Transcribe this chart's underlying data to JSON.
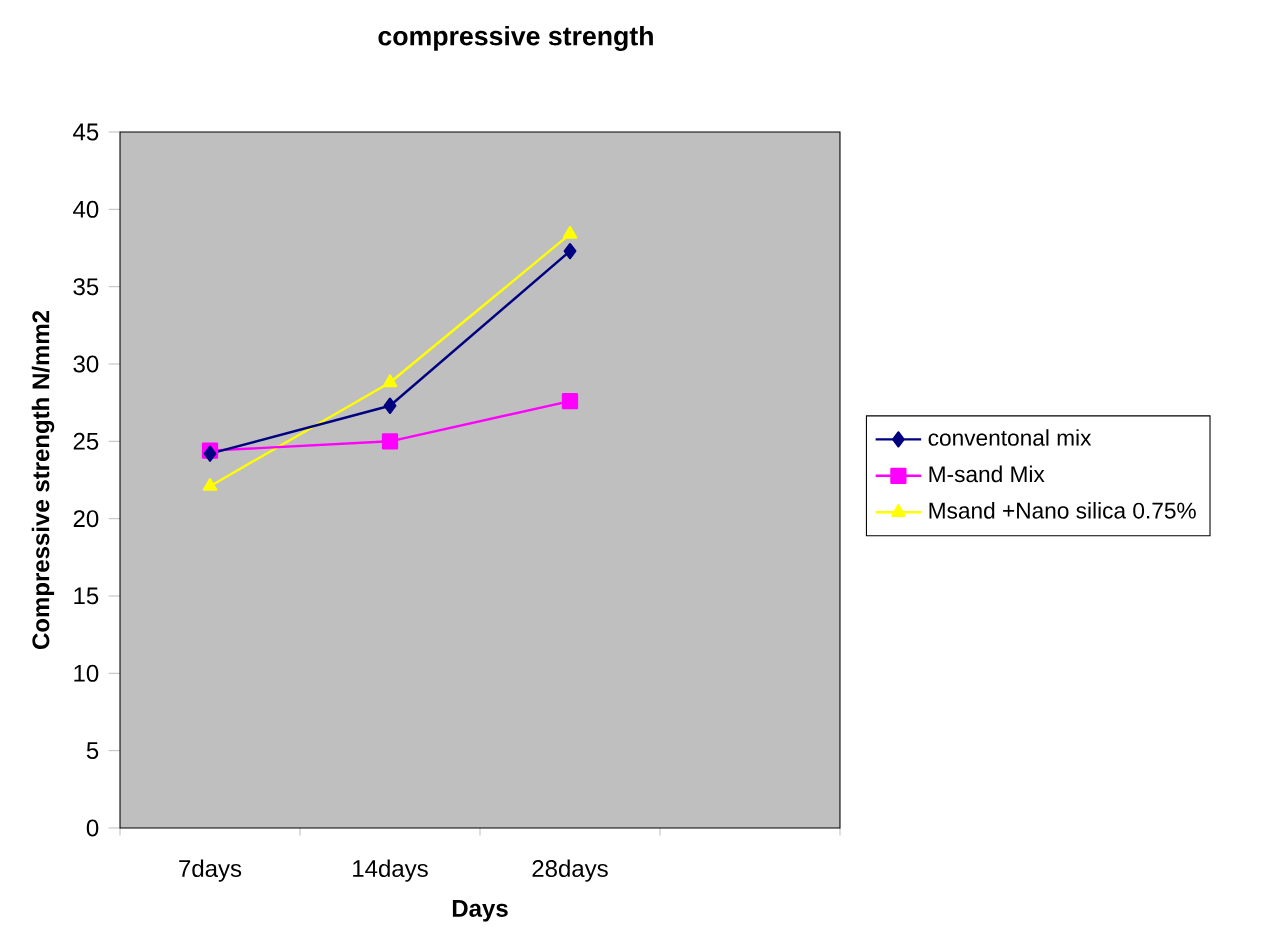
{
  "chart_data": {
    "type": "line",
    "title": "compressive strength",
    "xlabel": "Days",
    "ylabel": "Compressive strength N/mm2",
    "categories": [
      "7days",
      "14days",
      "28days",
      null
    ],
    "series": [
      {
        "name": "conventonal mix",
        "color": "#000080",
        "marker": "diamond",
        "values": [
          24.2,
          27.3,
          37.3,
          null
        ]
      },
      {
        "name": "M-sand Mix",
        "color": "#ff00ff",
        "marker": "square",
        "values": [
          24.4,
          25.0,
          27.6,
          null
        ]
      },
      {
        "name": "Msand +Nano silica 0.75%",
        "color": "#ffff00",
        "marker": "triangle",
        "values": [
          22.1,
          28.8,
          38.4,
          null
        ]
      }
    ],
    "ylim": [
      0,
      45
    ],
    "yticks": [
      0,
      5,
      10,
      15,
      20,
      25,
      30,
      35,
      40,
      45
    ],
    "grid": false,
    "legend": "right"
  }
}
